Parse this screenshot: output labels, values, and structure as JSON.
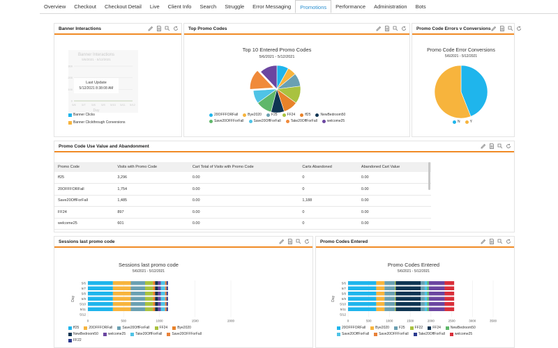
{
  "tabs": [
    {
      "label": "Overview"
    },
    {
      "label": "Checkout"
    },
    {
      "label": "Checkout Detail"
    },
    {
      "label": "Live"
    },
    {
      "label": "Client Info"
    },
    {
      "label": "Search"
    },
    {
      "label": "Struggle"
    },
    {
      "label": "Error Messaging"
    },
    {
      "label": "Promotions"
    },
    {
      "label": "Performance"
    },
    {
      "label": "Administration"
    },
    {
      "label": "Bots"
    }
  ],
  "active_tab": "Promotions",
  "colors": {
    "accent": "#f08a24",
    "tab_active": "#2a8fd0",
    "ff25": "#1fb5ec",
    "20OFFFORFall": "#f7b43d",
    "Bye2020": "#f7b43d",
    "Save20OffForFall": "#6aa0b2",
    "FF24": "#a9c23f",
    "Bye2020_bar": "#e8822a",
    "NewBedroom50": "#0f3553",
    "welcome25": "#6b46a0",
    "Take20OffForFall": "#4fc3e6",
    "Save20OFFForFall": "#e8823a",
    "FF22": "#2c3b8f",
    "F25": "#5a9fd6"
  },
  "panels": {
    "banner": {
      "title": "Banner Interactions",
      "chart_title": "Banner Interactions",
      "date_range": "5/6/2021 - 5/12/2021",
      "overlay_line1": "Last Update",
      "overlay_line2": "5/12/2021 8:38:08 AM",
      "x_axis_label": "Day",
      "legend": [
        "Banner Clicks",
        "Banner Clickthrough Conversions"
      ]
    },
    "top_promo": {
      "title": "Top Promo Codes"
    },
    "errors": {
      "title": "Promo Code Errors v Conversions"
    },
    "table": {
      "title": "Promo Code Use Value and Abandonment",
      "columns": [
        "Promo Code",
        "Visits with Promo Code",
        "Cart Total of Visits with Promo Code",
        "Carts Abandoned",
        "Abandoned Cart Value"
      ],
      "rows": [
        [
          "ff25",
          "3,296",
          "0.00",
          "0",
          "0.00"
        ],
        [
          "20OFFFORFall",
          "1,754",
          "0.00",
          "0",
          "0.00"
        ],
        [
          "Save20OffForFall",
          "1,485",
          "0.00",
          "1,188",
          "0.00"
        ],
        [
          "FF24",
          "897",
          "0.00",
          "0",
          "0.00"
        ],
        [
          "welcome25",
          "601",
          "0.00",
          "0",
          "0.00"
        ]
      ]
    },
    "sessions": {
      "title": "Sessions last promo code"
    },
    "entered": {
      "title": "Promo Codes Entered"
    }
  },
  "chart_data": [
    {
      "id": "banner",
      "type": "line",
      "title": "Banner Interactions",
      "subtitle": "5/6/2021 - 5/12/2021",
      "xlabel": "Day",
      "categories": [
        "5/6",
        "5/7",
        "5/8",
        "5/9",
        "5/10",
        "5/11",
        "5/12"
      ],
      "y_ticks": [
        "300",
        "200",
        "100",
        "0"
      ],
      "series": [
        {
          "name": "Banner Clicks",
          "values": [
            0,
            0,
            0,
            0,
            0,
            0,
            0
          ]
        },
        {
          "name": "Banner Clickthrough Conversions",
          "values": [
            0,
            0,
            0,
            0,
            0,
            0,
            0
          ]
        }
      ]
    },
    {
      "id": "top_promo",
      "type": "pie",
      "title": "Top 10 Entered Promo Codes",
      "subtitle": "5/6/2021 - 5/12/2021",
      "slices": [
        {
          "name": "20OFFFORFall",
          "value": 8
        },
        {
          "name": "Bye2020",
          "value": 6
        },
        {
          "name": "F25",
          "value": 9
        },
        {
          "name": "FF24",
          "value": 12
        },
        {
          "name": "ff25",
          "value": 10
        },
        {
          "name": "NewBedroom50",
          "value": 9
        },
        {
          "name": "Save20OFFForFall",
          "value": 11
        },
        {
          "name": "Save20OffForFall",
          "value": 9
        },
        {
          "name": "Take20OffForFall",
          "value": 14
        },
        {
          "name": "welcome25",
          "value": 12
        }
      ]
    },
    {
      "id": "errors",
      "type": "pie",
      "title": "Promo Code Error Conversions",
      "subtitle": "5/6/2021 - 5/12/2021",
      "slices": [
        {
          "name": "N",
          "value": 44
        },
        {
          "name": "Y",
          "value": 56
        }
      ]
    },
    {
      "id": "sessions",
      "type": "bar",
      "orientation": "horizontal-stacked",
      "title": "Sessions last promo code",
      "subtitle": "5/6/2021 - 5/12/2021",
      "ylabel": "Day",
      "categories": [
        "5/6",
        "5/7",
        "5/8",
        "5/9",
        "5/10",
        "5/11",
        "5/12"
      ],
      "xlim": [
        0,
        2000
      ],
      "x_ticks": [
        "0",
        "500",
        "1000",
        "1500",
        "2000"
      ],
      "series": [
        {
          "name": "ff25",
          "values": [
            350,
            350,
            350,
            350,
            350,
            350,
            0
          ]
        },
        {
          "name": "20OFFFORFall",
          "values": [
            250,
            250,
            250,
            250,
            250,
            250,
            0
          ]
        },
        {
          "name": "Save20OffForFall",
          "values": [
            200,
            200,
            200,
            200,
            200,
            200,
            0
          ]
        },
        {
          "name": "FF24",
          "values": [
            110,
            110,
            110,
            110,
            110,
            110,
            0
          ]
        },
        {
          "name": "Bye2020",
          "values": [
            30,
            30,
            30,
            30,
            30,
            30,
            0
          ]
        },
        {
          "name": "NewBedroom50",
          "values": [
            40,
            40,
            40,
            40,
            40,
            40,
            0
          ]
        },
        {
          "name": "welcome25",
          "values": [
            40,
            40,
            40,
            40,
            40,
            40,
            0
          ]
        },
        {
          "name": "Take20OffForFall",
          "values": [
            60,
            60,
            60,
            60,
            60,
            60,
            0
          ]
        },
        {
          "name": "Save20OFFForFall",
          "values": [
            20,
            20,
            20,
            20,
            20,
            20,
            0
          ]
        },
        {
          "name": "FF22",
          "values": [
            20,
            20,
            20,
            20,
            20,
            20,
            0
          ]
        }
      ]
    },
    {
      "id": "entered",
      "type": "bar",
      "orientation": "horizontal-stacked",
      "title": "Promo Codes Entered",
      "subtitle": "5/6/2021 - 5/12/2021",
      "ylabel": "Day",
      "categories": [
        "5/6",
        "5/7",
        "5/8",
        "5/9",
        "5/10",
        "5/11",
        "5/12"
      ],
      "xlim": [
        0,
        3500
      ],
      "x_ticks": [
        "0",
        "500",
        "1000",
        "1500",
        "2000",
        "2500",
        "3000",
        "3500"
      ],
      "series": [
        {
          "name": "20OFFFORFall",
          "values": [
            0,
            0,
            0,
            0,
            0,
            0,
            0
          ]
        },
        {
          "name": "ff25",
          "values": [
            680,
            680,
            680,
            680,
            680,
            680,
            0
          ]
        },
        {
          "name": "Bye2020",
          "values": [
            200,
            200,
            200,
            200,
            200,
            200,
            0
          ]
        },
        {
          "name": "F25",
          "values": [
            250,
            250,
            250,
            250,
            250,
            250,
            0
          ]
        },
        {
          "name": "FF22",
          "values": [
            20,
            20,
            20,
            20,
            20,
            20,
            0
          ]
        },
        {
          "name": "FF24",
          "values": [
            0,
            0,
            0,
            0,
            0,
            0,
            0
          ]
        },
        {
          "name": "NewBedroom50",
          "values": [
            600,
            600,
            600,
            600,
            600,
            600,
            0
          ]
        },
        {
          "name": "Save20OffForFall",
          "values": [
            100,
            100,
            100,
            100,
            100,
            100,
            0
          ]
        },
        {
          "name": "Take20OffForFall",
          "values": [
            60,
            60,
            60,
            60,
            60,
            60,
            0
          ]
        },
        {
          "name": "Save20OFFForFall",
          "values": [
            40,
            40,
            40,
            40,
            40,
            40,
            0
          ]
        },
        {
          "name": "welcome25",
          "values": [
            380,
            380,
            380,
            380,
            380,
            380,
            0
          ]
        },
        {
          "name": "Bye2020_bar",
          "values": [
            230,
            230,
            230,
            230,
            230,
            230,
            0
          ]
        }
      ]
    }
  ],
  "legends": {
    "top_promo": [
      {
        "name": "20OFFFORFall",
        "color": "#1fb5ec"
      },
      {
        "name": "Bye2020",
        "color": "#f7b43d"
      },
      {
        "name": "F25",
        "color": "#6aa0b2"
      },
      {
        "name": "FF24",
        "color": "#a9c23f"
      },
      {
        "name": "ff25",
        "color": "#e8822a"
      },
      {
        "name": "NewBedroom50",
        "color": "#0f3553"
      },
      {
        "name": "Save20OFFForFall",
        "color": "#5fb76a"
      },
      {
        "name": "Save20OffForFall",
        "color": "#4fc3e6"
      },
      {
        "name": "Take20OffForFall",
        "color": "#f08a3a"
      },
      {
        "name": "welcome25",
        "color": "#6b46a0"
      }
    ],
    "errors": [
      {
        "name": "N",
        "color": "#1fb5ec"
      },
      {
        "name": "Y",
        "color": "#f7b43d"
      }
    ],
    "sessions": [
      {
        "name": "ff25",
        "color": "#1fb5ec"
      },
      {
        "name": "20OFFFORFall",
        "color": "#f7b43d"
      },
      {
        "name": "Save20OffForFall",
        "color": "#6aa0b2"
      },
      {
        "name": "FF24",
        "color": "#a9c23f"
      },
      {
        "name": "Bye2020",
        "color": "#e8822a"
      },
      {
        "name": "NewBedroom50",
        "color": "#0f3553"
      },
      {
        "name": "welcome25",
        "color": "#6b46a0"
      },
      {
        "name": "Take20OffForFall",
        "color": "#4fc3e6"
      },
      {
        "name": "Save20OFFForFall",
        "color": "#e8823a"
      },
      {
        "name": "FF22",
        "color": "#2c3b8f"
      }
    ],
    "entered": [
      {
        "name": "20OFFFORFall",
        "color": "#1fb5ec"
      },
      {
        "name": "Bye2020",
        "color": "#f7b43d"
      },
      {
        "name": "F25",
        "color": "#6aa0b2"
      },
      {
        "name": "FF22",
        "color": "#a9c23f"
      },
      {
        "name": "FF24",
        "color": "#0f3553"
      },
      {
        "name": "NewBedroom50",
        "color": "#5fb76a"
      },
      {
        "name": "Save20OffForFall",
        "color": "#4fc3e6"
      },
      {
        "name": "Save20OFFForFall",
        "color": "#e8823a"
      },
      {
        "name": "Take20OffForFall",
        "color": "#2c3b8f"
      },
      {
        "name": "welcome25",
        "color": "#d82f3a"
      }
    ]
  }
}
